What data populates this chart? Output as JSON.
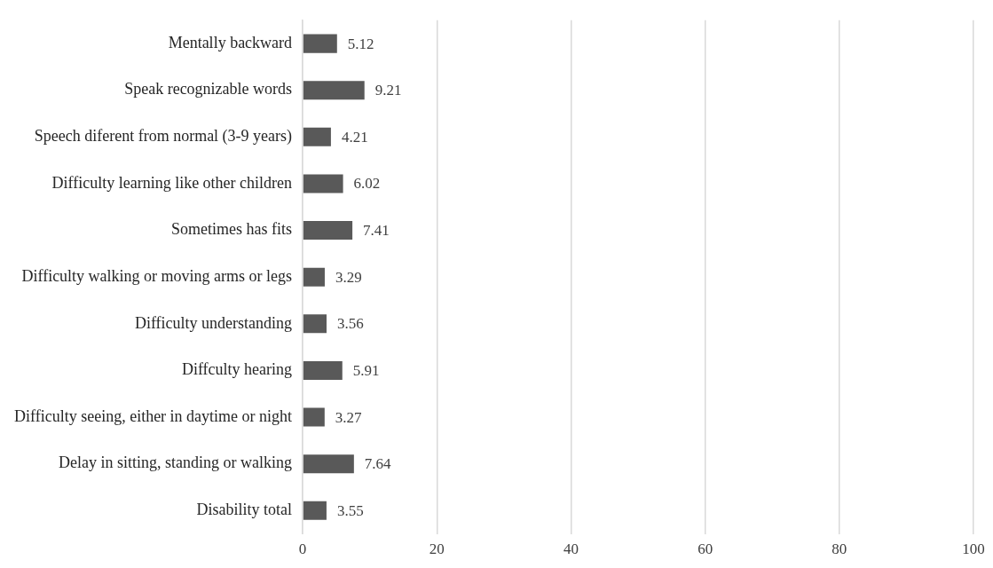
{
  "chart_data": {
    "type": "bar",
    "orientation": "horizontal",
    "categories": [
      "Mentally backward",
      "Speak recognizable words",
      "Speech diferent from normal (3-9 years)",
      "Difficulty learning like other children",
      "Sometimes has fits",
      "Difficulty walking or moving arms or legs",
      "Difficulty understanding",
      "Diffculty hearing",
      "Difficulty seeing, either in daytime or night",
      "Delay in sitting, standing or walking",
      "Disability total"
    ],
    "values": [
      5.12,
      9.21,
      4.21,
      6.02,
      7.41,
      3.29,
      3.56,
      5.91,
      3.27,
      7.64,
      3.55
    ],
    "color": "#595959",
    "xlim": [
      0,
      100
    ],
    "xticks": [
      0,
      20,
      40,
      60,
      80,
      100
    ],
    "grid": "x",
    "data_labels": true,
    "legend": false
  }
}
